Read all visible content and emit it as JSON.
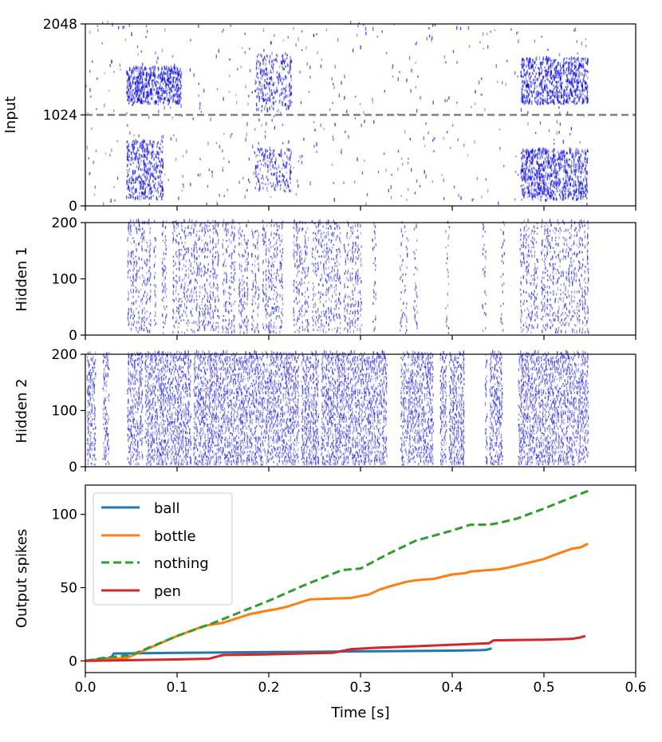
{
  "figure": {
    "xlabel": "Time [s]",
    "colors": {
      "raster": "#0000ff",
      "divider": "#808080",
      "ball": "#1f77b4",
      "bottle": "#ff7f0e",
      "nothing": "#2ca02c",
      "pen": "#d62728"
    }
  },
  "chart_data": [
    {
      "id": "input-raster",
      "type": "scatter",
      "ylabel": "Input",
      "xlim": [
        0.0,
        0.6
      ],
      "ylim": [
        0,
        2048
      ],
      "yticks": [
        "0",
        "1024",
        "2048"
      ],
      "ytick_values": [
        0,
        1024,
        2048
      ],
      "divider_y": 1024,
      "activity": [
        {
          "x0": 0.045,
          "x1": 0.105,
          "y0": 1130,
          "y1": 1550,
          "density": 0.9
        },
        {
          "x0": 0.045,
          "x1": 0.085,
          "y0": 60,
          "y1": 720,
          "density": 0.9
        },
        {
          "x0": 0.185,
          "x1": 0.225,
          "y0": 1050,
          "y1": 1700,
          "density": 0.6
        },
        {
          "x0": 0.185,
          "x1": 0.225,
          "y0": 150,
          "y1": 640,
          "density": 0.4
        },
        {
          "x0": 0.475,
          "x1": 0.548,
          "y0": 1130,
          "y1": 1650,
          "density": 0.9
        },
        {
          "x0": 0.475,
          "x1": 0.548,
          "y0": 50,
          "y1": 620,
          "density": 1.0
        }
      ],
      "sparse_range": [
        0.0,
        0.548
      ]
    },
    {
      "id": "hidden1-raster",
      "type": "scatter",
      "ylabel": "Hidden 1",
      "xlim": [
        0.0,
        0.6
      ],
      "ylim": [
        0,
        200
      ],
      "yticks": [
        "0",
        "100",
        "200"
      ],
      "ytick_values": [
        0,
        100,
        200
      ],
      "bursts": [
        [
          0.047,
          0.11
        ],
        [
          0.11,
          0.215
        ],
        [
          0.225,
          0.305
        ],
        [
          0.475,
          0.548
        ]
      ],
      "isolated_columns": [
        0.315,
        0.345,
        0.35,
        0.36,
        0.395,
        0.435,
        0.455
      ]
    },
    {
      "id": "hidden2-raster",
      "type": "scatter",
      "ylabel": "Hidden 2",
      "xlim": [
        0.0,
        0.6
      ],
      "ylim": [
        0,
        200
      ],
      "yticks": [
        "0",
        "100",
        "200"
      ],
      "ytick_values": [
        0,
        100,
        200
      ],
      "bursts": [
        [
          0.003,
          0.012
        ],
        [
          0.02,
          0.026
        ],
        [
          0.047,
          0.33
        ],
        [
          0.345,
          0.38
        ],
        [
          0.388,
          0.413
        ],
        [
          0.437,
          0.455
        ],
        [
          0.473,
          0.548
        ]
      ]
    },
    {
      "id": "output-spikes",
      "type": "line",
      "ylabel": "Output spikes",
      "xlabel": "Time [s]",
      "xlim": [
        0.0,
        0.6
      ],
      "ylim": [
        -8,
        120
      ],
      "xticks": [
        "0.0",
        "0.1",
        "0.2",
        "0.3",
        "0.4",
        "0.5",
        "0.6"
      ],
      "xtick_values": [
        0.0,
        0.1,
        0.2,
        0.3,
        0.4,
        0.5,
        0.6
      ],
      "yticks": [
        "0",
        "50",
        "100"
      ],
      "ytick_values": [
        0,
        50,
        100
      ],
      "legend_position": "top-left",
      "series": [
        {
          "name": "ball",
          "color": "#1f77b4",
          "dashed": false,
          "x": [
            0.0,
            0.028,
            0.031,
            0.1,
            0.2,
            0.3,
            0.4,
            0.43,
            0.437,
            0.443
          ],
          "y": [
            0,
            2,
            5,
            5.5,
            6,
            6.5,
            7,
            7.3,
            7.5,
            8.5
          ]
        },
        {
          "name": "bottle",
          "color": "#ff7f0e",
          "dashed": false,
          "x": [
            0.0,
            0.02,
            0.045,
            0.06,
            0.1,
            0.13,
            0.15,
            0.18,
            0.2,
            0.21,
            0.22,
            0.24,
            0.245,
            0.29,
            0.31,
            0.32,
            0.33,
            0.35,
            0.36,
            0.38,
            0.4,
            0.415,
            0.42,
            0.45,
            0.46,
            0.47,
            0.5,
            0.51,
            0.53,
            0.54,
            0.548
          ],
          "y": [
            0,
            1,
            2,
            6,
            17,
            24,
            26,
            32,
            34.5,
            35.5,
            37,
            41,
            42,
            43,
            45.5,
            48.5,
            50.5,
            54,
            55,
            56,
            59,
            60,
            61,
            62.5,
            63.5,
            65,
            69.5,
            72,
            76.5,
            77.5,
            80
          ]
        },
        {
          "name": "nothing",
          "color": "#2ca02c",
          "dashed": true,
          "x": [
            0.0,
            0.02,
            0.05,
            0.1,
            0.14,
            0.2,
            0.24,
            0.28,
            0.3,
            0.33,
            0.36,
            0.4,
            0.42,
            0.44,
            0.45,
            0.47,
            0.5,
            0.52,
            0.548
          ],
          "y": [
            0,
            2,
            4,
            17,
            26,
            41,
            52,
            62,
            63,
            73,
            82,
            89,
            93,
            93,
            94,
            97,
            104,
            109,
            116
          ]
        },
        {
          "name": "pen",
          "color": "#d62728",
          "dashed": false,
          "x": [
            0.0,
            0.05,
            0.1,
            0.135,
            0.15,
            0.2,
            0.27,
            0.29,
            0.32,
            0.36,
            0.4,
            0.44,
            0.445,
            0.5,
            0.53,
            0.54,
            0.545
          ],
          "y": [
            0,
            0.5,
            1,
            1.5,
            4,
            4.5,
            5.5,
            8,
            9,
            10,
            11,
            12,
            14,
            14.5,
            15,
            16,
            17
          ]
        }
      ]
    }
  ]
}
